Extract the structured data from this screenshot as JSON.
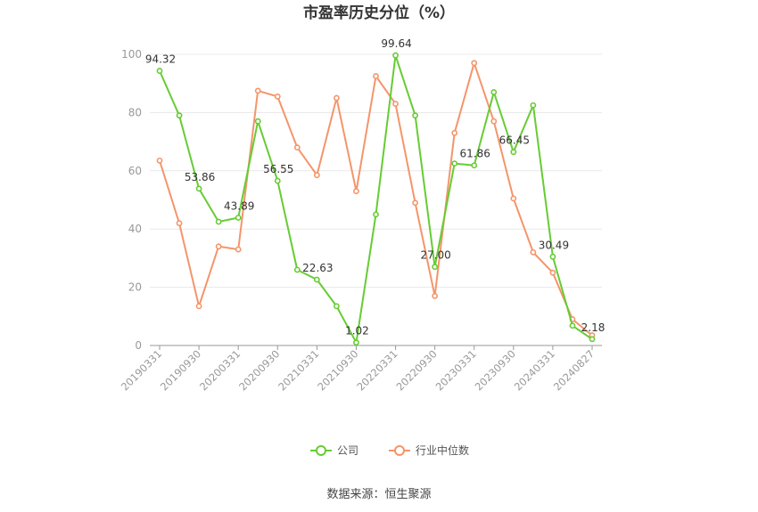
{
  "chart_data": {
    "type": "line",
    "title": "市盈率历史分位（%）",
    "source": "数据来源：恒生聚源",
    "ylim": [
      0,
      100
    ],
    "y_ticks": [
      0,
      20,
      40,
      60,
      80,
      100
    ],
    "grid": true,
    "legend_position": "bottom",
    "x": [
      "20190331",
      "20190630",
      "20190930",
      "20191231",
      "20200331",
      "20200630",
      "20200930",
      "20201231",
      "20210331",
      "20210630",
      "20210930",
      "20211231",
      "20220331",
      "20220630",
      "20220930",
      "20221231",
      "20230331",
      "20230630",
      "20230930",
      "20231231",
      "20240331",
      "20240630",
      "20240827"
    ],
    "x_tick_labels": [
      "20190331",
      "20190930",
      "20200331",
      "20200930",
      "20210331",
      "20210930",
      "20220331",
      "20220930",
      "20230331",
      "20230930",
      "20240331",
      "20240827"
    ],
    "series": [
      {
        "name": "公司",
        "color": "#66cc33",
        "values": [
          94.32,
          79,
          53.86,
          42.5,
          43.89,
          77,
          56.55,
          26,
          22.63,
          13.5,
          1.02,
          45,
          99.64,
          79,
          27.0,
          62.5,
          61.86,
          87,
          66.45,
          82.5,
          30.49,
          6.8,
          2.18
        ]
      },
      {
        "name": "行业中位数",
        "color": "#f4956a",
        "values": [
          63.5,
          42,
          13.5,
          34,
          33,
          87.5,
          85.5,
          68,
          58.5,
          85,
          53,
          92.5,
          83,
          49,
          17,
          73,
          97,
          77,
          50.5,
          32,
          25,
          9,
          3.5
        ]
      }
    ],
    "data_labels": [
      {
        "index": 0,
        "text": "94.32"
      },
      {
        "index": 2,
        "text": "53.86"
      },
      {
        "index": 4,
        "text": "43.89"
      },
      {
        "index": 6,
        "text": "56.55"
      },
      {
        "index": 8,
        "text": "22.63"
      },
      {
        "index": 10,
        "text": "1.02"
      },
      {
        "index": 12,
        "text": "99.64"
      },
      {
        "index": 14,
        "text": "27.00"
      },
      {
        "index": 16,
        "text": "61.86"
      },
      {
        "index": 18,
        "text": "66.45"
      },
      {
        "index": 20,
        "text": "30.49"
      },
      {
        "index": 22,
        "text": "2.18"
      }
    ]
  }
}
